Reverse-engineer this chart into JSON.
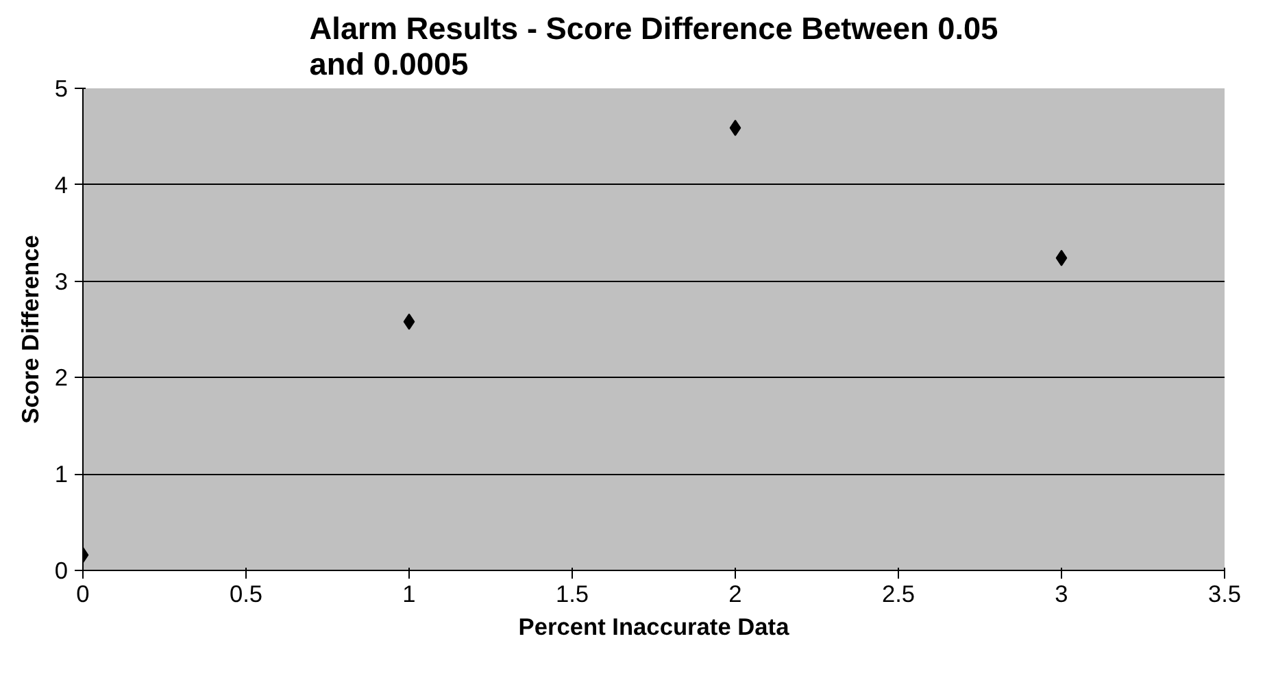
{
  "chart_data": {
    "type": "scatter",
    "title": "Alarm Results - Score Difference Between 0.05 and 0.0005",
    "xlabel": "Percent Inaccurate Data",
    "ylabel": "Score Difference",
    "x": [
      0,
      1,
      2,
      3
    ],
    "series": [
      {
        "color": "#000000",
        "values": [
          0.16,
          2.58,
          4.59,
          3.24
        ]
      }
    ],
    "xlim": [
      0,
      3.5
    ],
    "xticks": [
      0,
      {
        "value": 0.5,
        "label": "0.5"
      },
      1,
      {
        "value": 1.5,
        "label": "1.5"
      },
      2,
      {
        "value": 2.5,
        "label": "2.5"
      },
      3,
      {
        "value": 3.5,
        "label": "3.5"
      }
    ],
    "ylim": [
      0,
      5
    ],
    "yticks": [
      0,
      1,
      2,
      3,
      4,
      5
    ],
    "grid": "y",
    "marker": "diamond"
  }
}
